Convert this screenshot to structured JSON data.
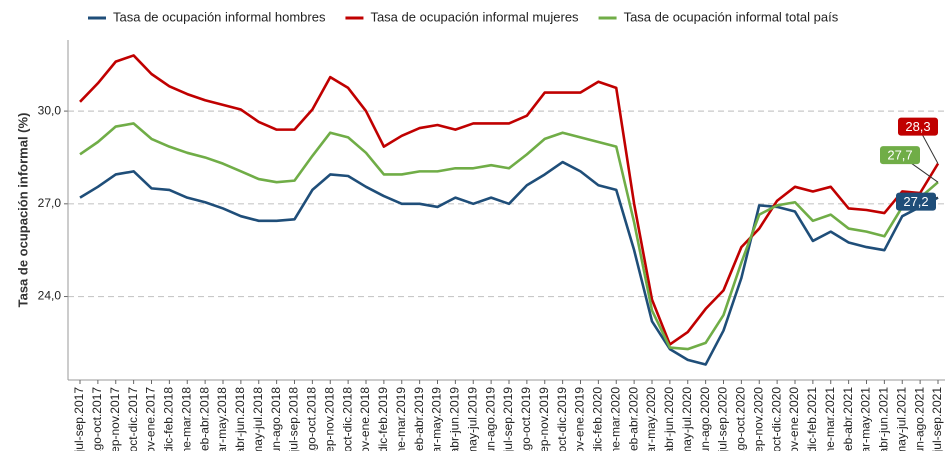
{
  "chart_data": {
    "type": "line",
    "y_label": "Tasa de ocupación informal (%)",
    "categories": [
      "jul-sep.2017",
      "ago-oct.2017",
      "sep-nov.2017",
      "oct-dic.2017",
      "nov-ene.2017",
      "dic-feb.2018",
      "ene-mar.2018",
      "feb-abr.2018",
      "mar-may.2018",
      "abr-jun.2018",
      "may-jul.2018",
      "jun-ago.2018",
      "jul-sep.2018",
      "ago-oct.2018",
      "sep-nov.2018",
      "oct-dic.2018",
      "nov-ene.2018",
      "dic-feb.2019",
      "ene-mar.2019",
      "feb-abr.2019",
      "mar-may.2019",
      "abr-jun.2019",
      "may-jul.2019",
      "jun-ago.2019",
      "jul-sep.2019",
      "ago-oct.2019",
      "sep-nov.2019",
      "oct-dic.2019",
      "nov-ene.2019",
      "dic-feb.2020",
      "ene-mar.2020",
      "feb-abr.2020",
      "mar-may.2020",
      "abr-jun.2020",
      "may-jul.2020",
      "jun-ago.2020",
      "jul-sep.2020",
      "ago-oct.2020",
      "sep-nov.2020",
      "oct-dic.2020",
      "nov-ene.2020",
      "dic-feb.2021",
      "ene-mar.2021",
      "feb-abr.2021",
      "mar-may.2021",
      "abr-jun.2021",
      "may-jul.2021",
      "jun-ago.2021",
      "jul-sep.2021"
    ],
    "series": [
      {
        "name": "Tasa de ocupación informal hombres",
        "color": "#1f4e79",
        "values": [
          27.2,
          27.55,
          27.95,
          28.05,
          27.5,
          27.45,
          27.2,
          27.05,
          26.85,
          26.6,
          26.45,
          26.45,
          26.5,
          27.45,
          27.95,
          27.9,
          27.55,
          27.25,
          27.0,
          27.0,
          26.9,
          27.2,
          27.0,
          27.2,
          27.0,
          27.6,
          27.95,
          28.35,
          28.05,
          27.6,
          27.45,
          25.5,
          23.2,
          22.3,
          21.95,
          21.8,
          22.9,
          24.6,
          26.95,
          26.9,
          26.75,
          25.8,
          26.1,
          25.75,
          25.6,
          25.5,
          26.6,
          26.9,
          27.2
        ],
        "value_labels": [
          null,
          null,
          null,
          null,
          null,
          null,
          null,
          null,
          null,
          null,
          null,
          null,
          null,
          null,
          null,
          null,
          null,
          null,
          null,
          null,
          null,
          null,
          null,
          null,
          null,
          null,
          null,
          null,
          null,
          null,
          null,
          null,
          null,
          null,
          null,
          null,
          null,
          null,
          null,
          null,
          null,
          null,
          null,
          null,
          null,
          null,
          null,
          null,
          "27,2"
        ]
      },
      {
        "name": "Tasa de ocupación informal mujeres",
        "color": "#c00000",
        "values": [
          30.3,
          30.9,
          31.6,
          31.8,
          31.2,
          30.8,
          30.55,
          30.35,
          30.2,
          30.05,
          29.65,
          29.4,
          29.4,
          30.05,
          31.1,
          30.75,
          30.0,
          28.85,
          29.2,
          29.45,
          29.55,
          29.4,
          29.6,
          29.6,
          29.6,
          29.85,
          30.6,
          30.6,
          30.6,
          30.95,
          30.75,
          27.0,
          23.9,
          22.45,
          22.85,
          23.6,
          24.2,
          25.6,
          26.2,
          27.1,
          27.55,
          27.4,
          27.55,
          26.85,
          26.8,
          26.7,
          27.4,
          27.35,
          28.3
        ],
        "value_labels": [
          null,
          null,
          null,
          null,
          null,
          null,
          null,
          null,
          null,
          null,
          null,
          null,
          null,
          null,
          null,
          null,
          null,
          null,
          null,
          null,
          null,
          null,
          null,
          null,
          null,
          null,
          null,
          null,
          null,
          null,
          null,
          null,
          null,
          null,
          null,
          null,
          null,
          null,
          null,
          null,
          null,
          null,
          null,
          null,
          null,
          null,
          null,
          null,
          "28,3"
        ]
      },
      {
        "name": "Tasa de ocupación informal total país",
        "color": "#70ad47",
        "values": [
          28.6,
          29.0,
          29.5,
          29.6,
          29.1,
          28.85,
          28.65,
          28.5,
          28.3,
          28.05,
          27.8,
          27.7,
          27.75,
          28.55,
          29.3,
          29.15,
          28.65,
          27.95,
          27.95,
          28.05,
          28.05,
          28.15,
          28.15,
          28.25,
          28.15,
          28.6,
          29.1,
          29.3,
          29.15,
          29.0,
          28.85,
          26.4,
          23.55,
          22.35,
          22.3,
          22.5,
          23.4,
          25.1,
          26.65,
          26.95,
          27.05,
          26.45,
          26.65,
          26.2,
          26.1,
          25.95,
          26.9,
          27.2,
          27.7
        ],
        "value_labels": [
          null,
          null,
          null,
          null,
          null,
          null,
          null,
          null,
          null,
          null,
          null,
          null,
          null,
          null,
          null,
          null,
          null,
          null,
          null,
          null,
          null,
          null,
          null,
          null,
          null,
          null,
          null,
          null,
          null,
          null,
          null,
          null,
          null,
          null,
          null,
          null,
          null,
          null,
          null,
          null,
          null,
          null,
          null,
          null,
          null,
          null,
          null,
          null,
          "27,7"
        ]
      }
    ],
    "ylim": [
      21.3,
      32.3
    ],
    "yticks": [
      {
        "value": 24,
        "label": "24,0"
      },
      {
        "value": 27,
        "label": "27,0"
      },
      {
        "value": 30,
        "label": "30,0"
      }
    ],
    "grid": true
  }
}
